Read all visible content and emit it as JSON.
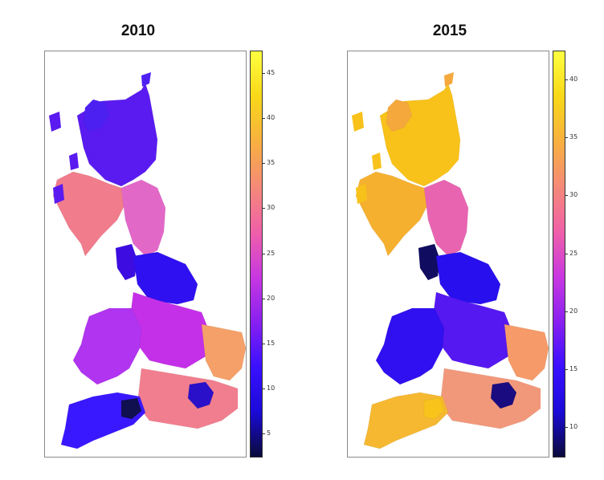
{
  "panels": [
    {
      "title": "2010",
      "legend_ticks": [
        "5",
        "10",
        "15",
        "20",
        "25",
        "30",
        "35",
        "40",
        "45"
      ],
      "colors": {
        "scotland": "#5a1bf0",
        "highlands_north": "#4d20f2",
        "southwest_scotland": "#f07c8c",
        "north_england": "#e268c8",
        "northwest": "#3d0ce0",
        "yorkshire": "#2f10f0",
        "midlands": "#c430e8",
        "wales": "#b034f0",
        "east_anglia": "#f5a068",
        "southeast": "#f07e8e",
        "london": "#2a10c8",
        "southwest": "#3a18ff",
        "cornwall_core": "#101050"
      }
    },
    {
      "title": "2015",
      "legend_ticks": [
        "10",
        "15",
        "20",
        "25",
        "30",
        "35",
        "40"
      ],
      "colors": {
        "scotland": "#f8c21a",
        "highlands_north": "#f5a83c",
        "southwest_scotland": "#f5b030",
        "north_england": "#e864b0",
        "northwest": "#100c60",
        "yorkshire": "#2810ee",
        "midlands": "#5618f0",
        "wales": "#3010f0",
        "east_anglia": "#f59a68",
        "southeast": "#f2987a",
        "london": "#1a0c80",
        "southwest": "#f5b830",
        "cornwall_core": "#f8c41c"
      }
    }
  ],
  "colormap": [
    "#0a0a3a",
    "#1a0ad8",
    "#3a10ff",
    "#8a20f0",
    "#c838e0",
    "#f060a8",
    "#f58a78",
    "#f8b040",
    "#f8d818",
    "#ffff40"
  ]
}
